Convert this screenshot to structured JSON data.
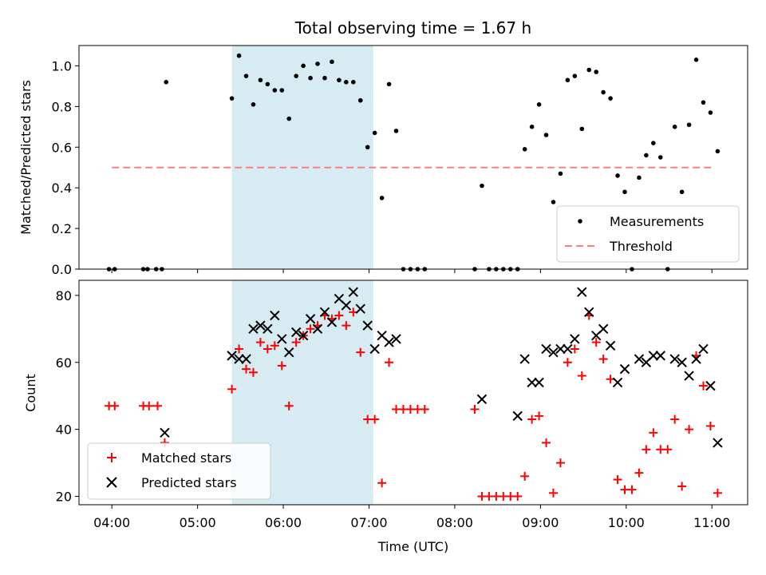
{
  "chart_data": [
    {
      "type": "scatter",
      "title": "Total observing time = 1.67 h",
      "xlabel": "",
      "ylabel": "Matched/Predicted stars",
      "xlim": [
        "03:37",
        "11:25"
      ],
      "ylim": [
        0,
        1.1
      ],
      "yticks": [
        "0.0",
        "0.2",
        "0.4",
        "0.6",
        "0.8",
        "1.0"
      ],
      "highlight_span": [
        "05:24",
        "07:03"
      ],
      "colors": {
        "measurements": "#000000",
        "threshold": "#ff7f7f",
        "span": "#add8e6"
      },
      "legend_position": "lower-right",
      "series": [
        {
          "name": "Measurements",
          "x": [
            "03:58",
            "04:02",
            "04:22",
            "04:25",
            "04:31",
            "04:35",
            "04:38",
            "05:24",
            "05:29",
            "05:34",
            "05:39",
            "05:44",
            "05:49",
            "05:54",
            "05:59",
            "06:04",
            "06:09",
            "06:14",
            "06:19",
            "06:24",
            "06:29",
            "06:34",
            "06:39",
            "06:44",
            "06:49",
            "06:54",
            "06:59",
            "07:04",
            "07:09",
            "07:14",
            "07:19",
            "07:24",
            "07:29",
            "07:34",
            "07:39",
            "08:14",
            "08:19",
            "08:24",
            "08:29",
            "08:34",
            "08:39",
            "08:44",
            "08:49",
            "08:54",
            "08:59",
            "09:04",
            "09:09",
            "09:14",
            "09:19",
            "09:24",
            "09:29",
            "09:34",
            "09:39",
            "09:44",
            "09:49",
            "09:54",
            "09:59",
            "10:04",
            "10:09",
            "10:14",
            "10:19",
            "10:24",
            "10:29",
            "10:34",
            "10:39",
            "10:44",
            "10:49",
            "10:54",
            "10:59",
            "11:04"
          ],
          "y": [
            0,
            0,
            0,
            0,
            0,
            0,
            0.92,
            0.84,
            1.05,
            0.95,
            0.81,
            0.93,
            0.91,
            0.88,
            0.88,
            0.74,
            0.95,
            1.0,
            0.94,
            1.01,
            0.94,
            1.02,
            0.93,
            0.92,
            0.92,
            0.83,
            0.6,
            0.67,
            0.35,
            0.91,
            0.68,
            0,
            0,
            0,
            0,
            0,
            0.41,
            0,
            0,
            0,
            0,
            0,
            0.59,
            0.7,
            0.81,
            0.66,
            0.33,
            0.47,
            0.93,
            0.95,
            0.69,
            0.98,
            0.97,
            0.87,
            0.84,
            0.46,
            0.38,
            0,
            0.45,
            0.56,
            0.62,
            0.55,
            0,
            0.7,
            0.38,
            0.71,
            1.03,
            0.82,
            0.77,
            0.58
          ]
        },
        {
          "name": "Threshold",
          "x": [
            "04:00",
            "11:00"
          ],
          "y": [
            0.5,
            0.5
          ]
        }
      ]
    },
    {
      "type": "scatter",
      "title": "",
      "xlabel": "Time (UTC)",
      "ylabel": "Count",
      "xlim": [
        "03:37",
        "11:25"
      ],
      "ylim": [
        17.5,
        84.5
      ],
      "yticks": [
        "20",
        "40",
        "60",
        "80"
      ],
      "xticks": [
        "04:00",
        "05:00",
        "06:00",
        "07:00",
        "08:00",
        "09:00",
        "10:00",
        "11:00"
      ],
      "highlight_span": [
        "05:24",
        "07:03"
      ],
      "colors": {
        "matched": "#ff0000",
        "predicted": "#000000",
        "span": "#add8e6"
      },
      "legend_position": "lower-left",
      "series": [
        {
          "name": "Matched stars",
          "x": [
            "03:58",
            "04:02",
            "04:22",
            "04:26",
            "04:32",
            "04:37",
            "05:24",
            "05:29",
            "05:34",
            "05:39",
            "05:44",
            "05:49",
            "05:54",
            "05:59",
            "06:04",
            "06:09",
            "06:14",
            "06:19",
            "06:24",
            "06:29",
            "06:34",
            "06:39",
            "06:44",
            "06:49",
            "06:54",
            "06:59",
            "07:04",
            "07:09",
            "07:14",
            "07:19",
            "07:24",
            "07:29",
            "07:34",
            "07:39",
            "08:14",
            "08:19",
            "08:24",
            "08:29",
            "08:34",
            "08:39",
            "08:44",
            "08:49",
            "08:54",
            "08:59",
            "09:04",
            "09:09",
            "09:14",
            "09:19",
            "09:24",
            "09:29",
            "09:34",
            "09:39",
            "09:44",
            "09:49",
            "09:54",
            "09:59",
            "10:04",
            "10:09",
            "10:14",
            "10:19",
            "10:24",
            "10:29",
            "10:34",
            "10:39",
            "10:44",
            "10:49",
            "10:54",
            "10:59",
            "11:04"
          ],
          "y": [
            47,
            47,
            47,
            47,
            47,
            36,
            52,
            64,
            58,
            57,
            66,
            64,
            65,
            59,
            47,
            66,
            68,
            70,
            71,
            74,
            73,
            74,
            71,
            75,
            63,
            43,
            43,
            24,
            60,
            46,
            46,
            46,
            46,
            46,
            46,
            20,
            20,
            20,
            20,
            20,
            20,
            26,
            43,
            44,
            36,
            21,
            30,
            60,
            64,
            56,
            74,
            66,
            61,
            55,
            25,
            22,
            22,
            27,
            34,
            39,
            34,
            34,
            43,
            23,
            40,
            62,
            53,
            41,
            21
          ]
        },
        {
          "name": "Predicted stars",
          "x": [
            "04:37",
            "05:24",
            "05:29",
            "05:34",
            "05:39",
            "05:44",
            "05:49",
            "05:54",
            "05:59",
            "06:04",
            "06:09",
            "06:14",
            "06:19",
            "06:24",
            "06:29",
            "06:34",
            "06:39",
            "06:44",
            "06:49",
            "06:54",
            "06:59",
            "07:04",
            "07:09",
            "07:14",
            "07:19",
            "08:19",
            "08:44",
            "08:49",
            "08:54",
            "08:59",
            "09:04",
            "09:09",
            "09:14",
            "09:19",
            "09:24",
            "09:29",
            "09:34",
            "09:39",
            "09:44",
            "09:49",
            "09:54",
            "09:59",
            "10:04",
            "10:09",
            "10:14",
            "10:19",
            "10:24",
            "10:29",
            "10:34",
            "10:39",
            "10:44",
            "10:49",
            "10:54",
            "10:59",
            "11:04"
          ],
          "y": [
            39,
            62,
            61,
            61,
            70,
            71,
            70,
            74,
            67,
            63,
            69,
            68,
            73,
            70,
            75,
            72,
            79,
            77,
            81,
            76,
            71,
            64,
            68,
            66,
            67,
            49,
            44,
            61,
            54,
            54,
            64,
            63,
            64,
            64,
            67,
            81,
            75,
            68,
            70,
            65,
            54,
            58,
            null,
            61,
            60,
            62,
            62,
            null,
            61,
            60,
            56,
            61,
            64,
            53,
            36
          ]
        }
      ]
    }
  ]
}
